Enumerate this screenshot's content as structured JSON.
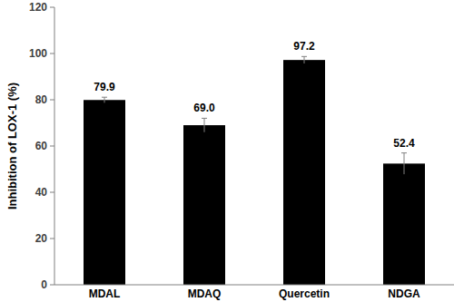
{
  "chart_data": {
    "type": "bar",
    "y_label": "Inhibition of LOX-1 (%)",
    "categories": [
      "MDAL",
      "MDAQ",
      "Quercetin",
      "NDGA"
    ],
    "values": [
      79.9,
      69.0,
      97.2,
      52.4
    ],
    "value_labels": [
      "79.9",
      "69.0",
      "97.2",
      "52.4"
    ],
    "errors": [
      1.2,
      3.0,
      1.5,
      4.6
    ],
    "color": "#000000",
    "ylim": [
      0,
      120
    ],
    "yticks": [
      0,
      20,
      40,
      60,
      80,
      100,
      120
    ],
    "grid": false,
    "data_labels": true
  }
}
